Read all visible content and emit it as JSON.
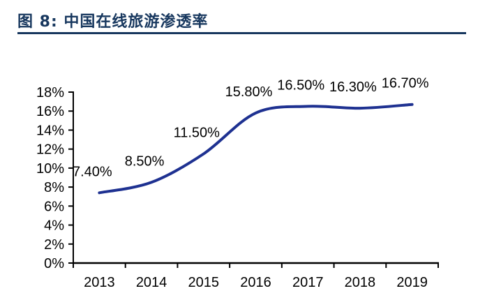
{
  "figure": {
    "title": "图 8:  中国在线旅游渗透率",
    "accent_color": "#17375E"
  },
  "chart_data": {
    "type": "line",
    "title": "中国在线旅游渗透率",
    "categories": [
      "2013",
      "2014",
      "2015",
      "2016",
      "2017",
      "2018",
      "2019"
    ],
    "series": [
      {
        "name": "中国在线旅游渗透率",
        "values": [
          7.4,
          8.5,
          11.5,
          15.8,
          16.5,
          16.3,
          16.7
        ],
        "data_labels": [
          "7.40%",
          "8.50%",
          "11.50%",
          "15.80%",
          "16.50%",
          "16.30%",
          "16.70%"
        ]
      }
    ],
    "y_tick_labels": [
      "0%",
      "2%",
      "4%",
      "6%",
      "8%",
      "10%",
      "12%",
      "14%",
      "16%",
      "18%"
    ],
    "ylim": [
      0,
      18
    ],
    "y_step": 2,
    "xlabel": "",
    "ylabel": "",
    "grid": false,
    "legend": "none",
    "smooth": true,
    "line_color": "#1E3191",
    "axis_color": "#000000",
    "text_color": "#000000"
  }
}
